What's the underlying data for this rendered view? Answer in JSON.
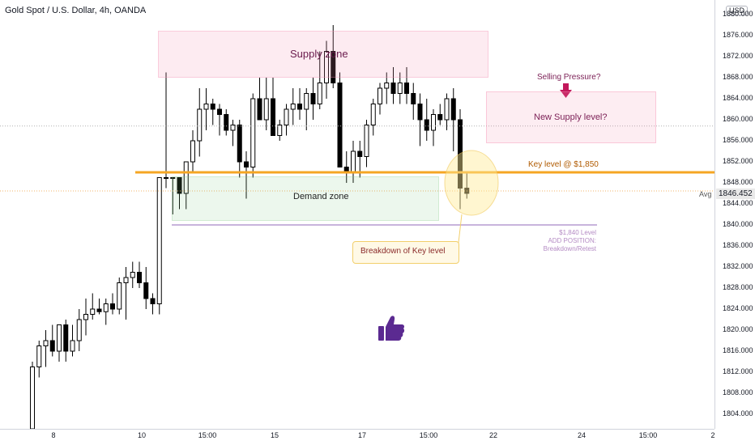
{
  "header": {
    "symbol_title": "Gold Spot / U.S. Dollar, 4h, OANDA",
    "currency": "USD"
  },
  "annotations": {
    "supply_zone": "Supply zone",
    "demand_zone": "Demand zone",
    "selling_pressure": "Selling Pressure?",
    "new_supply": "New Supply level?",
    "key_level": "Key level @ $1,850",
    "level_1840": "$1,840 Level",
    "add_position": "ADD POSITION: Breakdown/Retest",
    "breakdown": "Breakdown of Key level"
  },
  "price_axis": {
    "avg_label": "Avg",
    "last_price": "1846.452",
    "ticks": [
      "1880.000",
      "1876.000",
      "1872.000",
      "1868.000",
      "1864.000",
      "1860.000",
      "1856.000",
      "1852.000",
      "1848.000",
      "1844.000",
      "1840.000",
      "1836.000",
      "1832.000",
      "1828.000",
      "1824.000",
      "1820.000",
      "1816.000",
      "1812.000",
      "1808.000",
      "1804.000"
    ]
  },
  "time_axis": {
    "ticks": [
      "8",
      "10",
      "15:00",
      "15",
      "17",
      "15:00",
      "22",
      "24",
      "15:00",
      "2"
    ]
  },
  "colors": {
    "up_candle": "#ffffff",
    "down_candle": "#000000",
    "key_level_line": "#f5a623",
    "supply_zone": "#f48fb1",
    "demand_zone": "#81c784",
    "arrow": "#c2185b",
    "thumb": "#5b2a91"
  },
  "icons": {
    "thumb": "thumbs-up-icon",
    "arrow": "arrow-down-icon"
  },
  "chart_data": {
    "type": "candlestick",
    "ylim": [
      1802,
      1882
    ],
    "key_level": 1850,
    "level_1840": 1840,
    "last_price": 1846.452,
    "candles": [
      {
        "o": 1797,
        "h": 1814,
        "l": 1797,
        "c": 1813
      },
      {
        "o": 1813,
        "h": 1818,
        "l": 1811,
        "c": 1817
      },
      {
        "o": 1817,
        "h": 1820,
        "l": 1813,
        "c": 1818
      },
      {
        "o": 1818,
        "h": 1821,
        "l": 1815,
        "c": 1816
      },
      {
        "o": 1816,
        "h": 1821,
        "l": 1814,
        "c": 1821
      },
      {
        "o": 1821,
        "h": 1822,
        "l": 1814,
        "c": 1816
      },
      {
        "o": 1816,
        "h": 1821,
        "l": 1815,
        "c": 1818
      },
      {
        "o": 1818,
        "h": 1824,
        "l": 1816,
        "c": 1822
      },
      {
        "o": 1822,
        "h": 1826,
        "l": 1819,
        "c": 1823
      },
      {
        "o": 1823,
        "h": 1827,
        "l": 1822,
        "c": 1824
      },
      {
        "o": 1824,
        "h": 1826,
        "l": 1823,
        "c": 1823.5
      },
      {
        "o": 1823.5,
        "h": 1826,
        "l": 1821,
        "c": 1825
      },
      {
        "o": 1825,
        "h": 1827,
        "l": 1823,
        "c": 1824
      },
      {
        "o": 1824,
        "h": 1830,
        "l": 1823,
        "c": 1829
      },
      {
        "o": 1829,
        "h": 1832,
        "l": 1822,
        "c": 1830
      },
      {
        "o": 1830,
        "h": 1833,
        "l": 1828,
        "c": 1831
      },
      {
        "o": 1831,
        "h": 1833,
        "l": 1828,
        "c": 1829
      },
      {
        "o": 1829,
        "h": 1832,
        "l": 1824,
        "c": 1826
      },
      {
        "o": 1826,
        "h": 1827,
        "l": 1823,
        "c": 1825
      },
      {
        "o": 1825,
        "h": 1849,
        "l": 1823,
        "c": 1849
      },
      {
        "o": 1849,
        "h": 1869,
        "l": 1847,
        "c": 1849
      },
      {
        "o": 1849,
        "h": 1849,
        "l": 1842,
        "c": 1849
      },
      {
        "o": 1849,
        "h": 1849,
        "l": 1843,
        "c": 1846
      },
      {
        "o": 1846,
        "h": 1852,
        "l": 1843,
        "c": 1852
      },
      {
        "o": 1852,
        "h": 1858,
        "l": 1850,
        "c": 1856
      },
      {
        "o": 1856,
        "h": 1866,
        "l": 1853,
        "c": 1862
      },
      {
        "o": 1862,
        "h": 1866,
        "l": 1858,
        "c": 1863
      },
      {
        "o": 1863,
        "h": 1864,
        "l": 1859,
        "c": 1862
      },
      {
        "o": 1862,
        "h": 1863,
        "l": 1857,
        "c": 1861
      },
      {
        "o": 1861,
        "h": 1862,
        "l": 1857,
        "c": 1858
      },
      {
        "o": 1858,
        "h": 1860,
        "l": 1855,
        "c": 1859
      },
      {
        "o": 1859,
        "h": 1860,
        "l": 1849,
        "c": 1852
      },
      {
        "o": 1852,
        "h": 1854,
        "l": 1845,
        "c": 1851
      },
      {
        "o": 1851,
        "h": 1865,
        "l": 1849,
        "c": 1864
      },
      {
        "o": 1864,
        "h": 1868,
        "l": 1860,
        "c": 1860
      },
      {
        "o": 1860,
        "h": 1868,
        "l": 1858,
        "c": 1864
      },
      {
        "o": 1864,
        "h": 1868,
        "l": 1857,
        "c": 1857
      },
      {
        "o": 1857,
        "h": 1860,
        "l": 1856,
        "c": 1859
      },
      {
        "o": 1859,
        "h": 1863,
        "l": 1857,
        "c": 1862
      },
      {
        "o": 1862,
        "h": 1866,
        "l": 1859,
        "c": 1863
      },
      {
        "o": 1863,
        "h": 1866,
        "l": 1860,
        "c": 1862
      },
      {
        "o": 1862,
        "h": 1866,
        "l": 1858,
        "c": 1865
      },
      {
        "o": 1865,
        "h": 1868,
        "l": 1860,
        "c": 1863
      },
      {
        "o": 1863,
        "h": 1873,
        "l": 1862,
        "c": 1867
      },
      {
        "o": 1867,
        "h": 1875,
        "l": 1864,
        "c": 1873
      },
      {
        "o": 1873,
        "h": 1878,
        "l": 1866,
        "c": 1867
      },
      {
        "o": 1867,
        "h": 1869,
        "l": 1851,
        "c": 1851
      },
      {
        "o": 1851,
        "h": 1854,
        "l": 1848,
        "c": 1850
      },
      {
        "o": 1850,
        "h": 1856,
        "l": 1848,
        "c": 1854
      },
      {
        "o": 1854,
        "h": 1856,
        "l": 1849,
        "c": 1853
      },
      {
        "o": 1853,
        "h": 1860,
        "l": 1851,
        "c": 1859
      },
      {
        "o": 1859,
        "h": 1864,
        "l": 1857,
        "c": 1863
      },
      {
        "o": 1863,
        "h": 1867,
        "l": 1861,
        "c": 1866
      },
      {
        "o": 1866,
        "h": 1869,
        "l": 1863,
        "c": 1867
      },
      {
        "o": 1867,
        "h": 1870,
        "l": 1863,
        "c": 1865
      },
      {
        "o": 1865,
        "h": 1869,
        "l": 1863,
        "c": 1867
      },
      {
        "o": 1867,
        "h": 1870,
        "l": 1863,
        "c": 1865
      },
      {
        "o": 1865,
        "h": 1867,
        "l": 1860,
        "c": 1863
      },
      {
        "o": 1863,
        "h": 1865,
        "l": 1855,
        "c": 1860
      },
      {
        "o": 1860,
        "h": 1864,
        "l": 1856,
        "c": 1858
      },
      {
        "o": 1858,
        "h": 1862,
        "l": 1855,
        "c": 1861
      },
      {
        "o": 1861,
        "h": 1863,
        "l": 1859,
        "c": 1860
      },
      {
        "o": 1860,
        "h": 1865,
        "l": 1858,
        "c": 1864
      },
      {
        "o": 1864,
        "h": 1866,
        "l": 1854,
        "c": 1860
      },
      {
        "o": 1860,
        "h": 1862,
        "l": 1843,
        "c": 1847
      },
      {
        "o": 1847,
        "h": 1850,
        "l": 1845,
        "c": 1846
      }
    ]
  }
}
